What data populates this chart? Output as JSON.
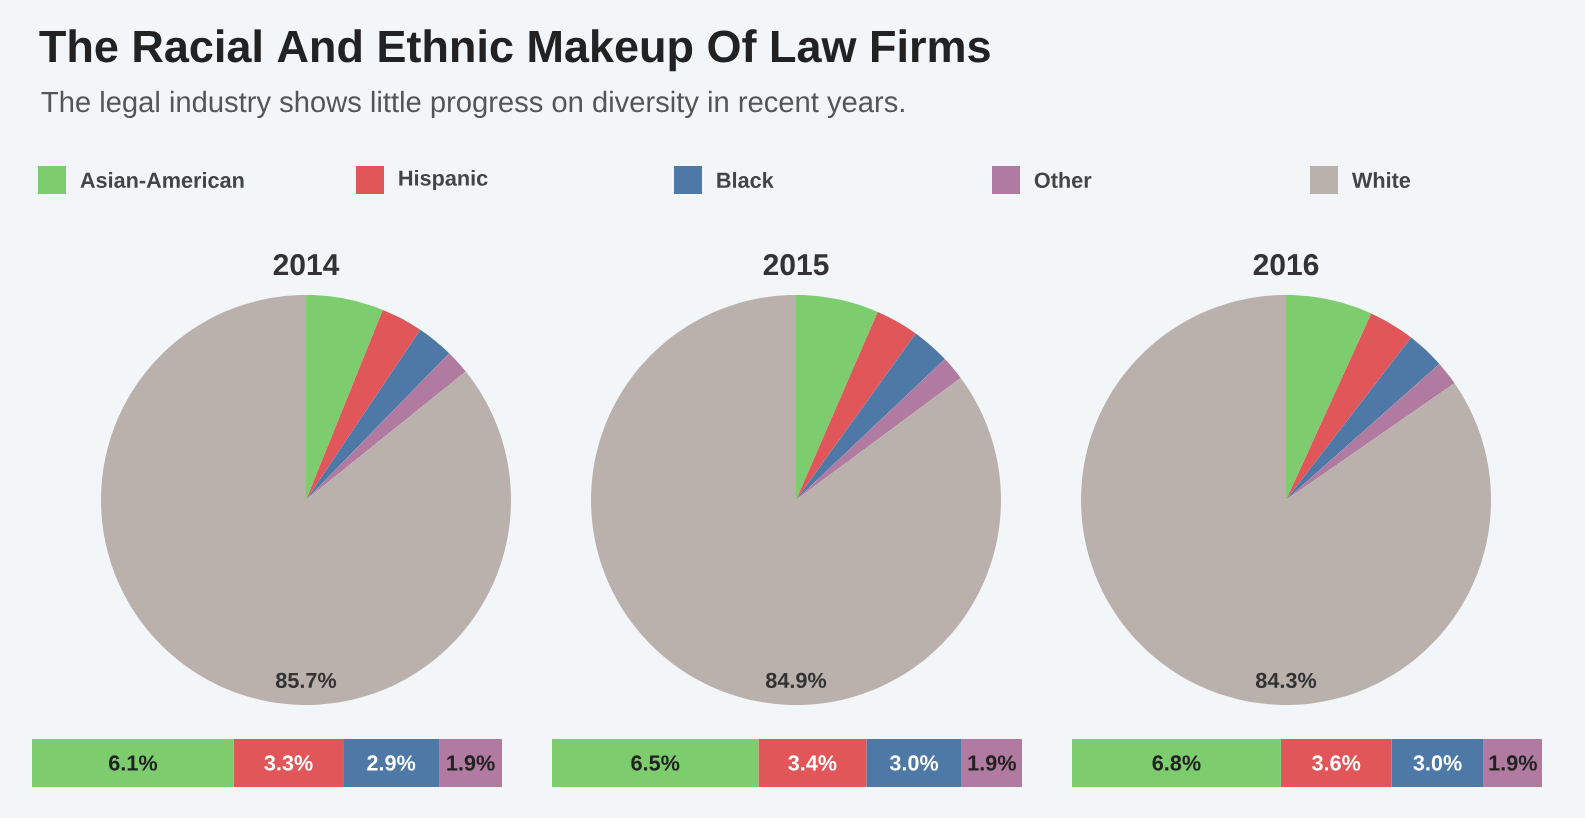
{
  "chart_data": [
    {
      "type": "other",
      "title": "The Racial And Ethnic Makeup Of Law Firms",
      "subtitle": "The legal industry shows little progress on diversity in recent years."
    },
    {
      "type": "pie",
      "title": "2014",
      "legend": "top",
      "categories": [
        "Asian-American",
        "Hispanic",
        "Black",
        "Other",
        "White"
      ],
      "values": [
        6.1,
        3.3,
        2.9,
        1.9,
        85.7
      ],
      "colors": [
        "#7dcd6e",
        "#e15759",
        "#4e79a7",
        "#b07aa1",
        "#bab0ac"
      ],
      "value_labels": [
        null,
        null,
        null,
        null,
        "85.7%"
      ]
    },
    {
      "type": "pie",
      "title": "2015",
      "categories": [
        null,
        null,
        null,
        null,
        null
      ],
      "values": [
        6.5,
        3.4,
        3.0,
        1.9,
        84.9
      ],
      "colors": [
        "#7dcd6e",
        "#e15759",
        "#4e79a7",
        "#b07aa1",
        "#bab0ac"
      ],
      "value_labels": [
        null,
        null,
        null,
        null,
        "84.9%"
      ]
    },
    {
      "type": "pie",
      "title": "2016",
      "categories": [
        null,
        null,
        null,
        null,
        null
      ],
      "values": [
        6.8,
        3.6,
        3.0,
        1.9,
        84.3
      ],
      "colors": [
        "#7dcd6e",
        "#e15759",
        "#4e79a7",
        "#b07aa1",
        "#bab0ac"
      ],
      "value_labels": [
        null,
        null,
        null,
        null,
        "84.3%"
      ]
    },
    {
      "type": "bar",
      "orientation": "horizontal",
      "stacked": true,
      "categories": [
        null
      ],
      "series": [
        {
          "color": "#7dcd6e",
          "values": [
            6.1
          ],
          "value_labels": [
            "6.1%"
          ]
        },
        {
          "color": "#e15759",
          "values": [
            3.3
          ],
          "value_labels": [
            "3.3%"
          ]
        },
        {
          "color": "#4e79a7",
          "values": [
            2.9
          ],
          "value_labels": [
            "2.9%"
          ]
        },
        {
          "color": "#b07aa1",
          "values": [
            1.9
          ],
          "value_labels": [
            "1.9%"
          ]
        }
      ]
    },
    {
      "type": "bar",
      "orientation": "horizontal",
      "stacked": true,
      "categories": [
        null
      ],
      "series": [
        {
          "color": "#7dcd6e",
          "values": [
            6.5
          ],
          "value_labels": [
            "6.5%"
          ]
        },
        {
          "color": "#e15759",
          "values": [
            3.4
          ],
          "value_labels": [
            "3.4%"
          ]
        },
        {
          "color": "#4e79a7",
          "values": [
            3.0
          ],
          "value_labels": [
            "3.0%"
          ]
        },
        {
          "color": "#b07aa1",
          "values": [
            1.9
          ],
          "value_labels": [
            "1.9%"
          ]
        }
      ]
    },
    {
      "type": "bar",
      "orientation": "horizontal",
      "stacked": true,
      "categories": [
        null
      ],
      "series": [
        {
          "color": "#7dcd6e",
          "values": [
            6.8
          ],
          "value_labels": [
            "6.8%"
          ]
        },
        {
          "color": "#e15759",
          "values": [
            3.6
          ],
          "value_labels": [
            "3.6%"
          ]
        },
        {
          "color": "#4e79a7",
          "values": [
            3.0
          ],
          "value_labels": [
            "3.0%"
          ]
        },
        {
          "color": "#b07aa1",
          "values": [
            1.9
          ],
          "value_labels": [
            "1.9%"
          ]
        }
      ]
    }
  ]
}
